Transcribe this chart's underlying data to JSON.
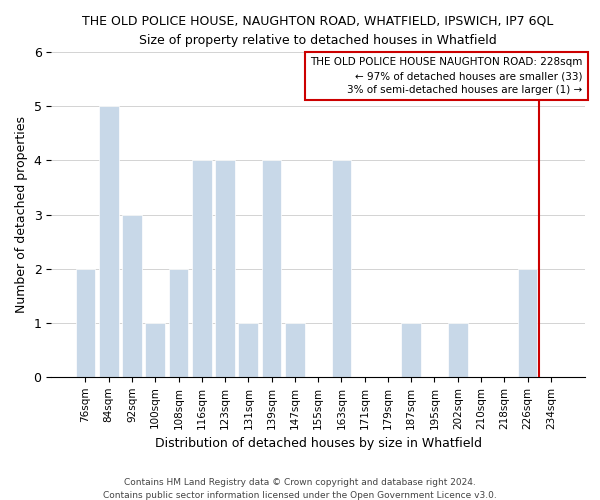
{
  "title": "THE OLD POLICE HOUSE, NAUGHTON ROAD, WHATFIELD, IPSWICH, IP7 6QL",
  "subtitle": "Size of property relative to detached houses in Whatfield",
  "xlabel": "Distribution of detached houses by size in Whatfield",
  "ylabel": "Number of detached properties",
  "bar_labels": [
    "76sqm",
    "84sqm",
    "92sqm",
    "100sqm",
    "108sqm",
    "116sqm",
    "123sqm",
    "131sqm",
    "139sqm",
    "147sqm",
    "155sqm",
    "163sqm",
    "171sqm",
    "179sqm",
    "187sqm",
    "195sqm",
    "202sqm",
    "210sqm",
    "218sqm",
    "226sqm",
    "234sqm"
  ],
  "bar_values": [
    2,
    5,
    3,
    1,
    2,
    4,
    4,
    1,
    4,
    1,
    0,
    4,
    0,
    0,
    1,
    0,
    1,
    0,
    0,
    2,
    0
  ],
  "bar_color": "#c8d8e8",
  "highlight_border_color": "#cc0000",
  "vline_index": 19.5,
  "ylim": [
    0,
    6
  ],
  "yticks": [
    0,
    1,
    2,
    3,
    4,
    5,
    6
  ],
  "annotation_title": "THE OLD POLICE HOUSE NAUGHTON ROAD: 228sqm",
  "annotation_line1": "← 97% of detached houses are smaller (33)",
  "annotation_line2": "3% of semi-detached houses are larger (1) →",
  "footer_line1": "Contains HM Land Registry data © Crown copyright and database right 2024.",
  "footer_line2": "Contains public sector information licensed under the Open Government Licence v3.0."
}
